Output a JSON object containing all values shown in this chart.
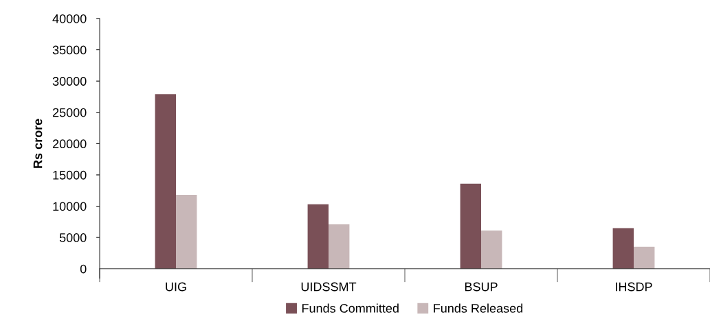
{
  "chart_data": {
    "type": "bar",
    "ylabel": "Rs crore",
    "categories": [
      "UIG",
      "UIDSSMT",
      "BSUP",
      "IHSDP"
    ],
    "series": [
      {
        "name": "Funds Committed",
        "color": "#7a5057",
        "values": [
          27900,
          10300,
          13600,
          6500
        ]
      },
      {
        "name": "Funds Released",
        "color": "#c8b7b8",
        "values": [
          11800,
          7100,
          6100,
          3500
        ]
      }
    ],
    "ylim": [
      0,
      40000
    ],
    "yticks": [
      0,
      5000,
      10000,
      15000,
      20000,
      25000,
      30000,
      35000,
      40000
    ],
    "grid": false,
    "legend": "bottom"
  }
}
